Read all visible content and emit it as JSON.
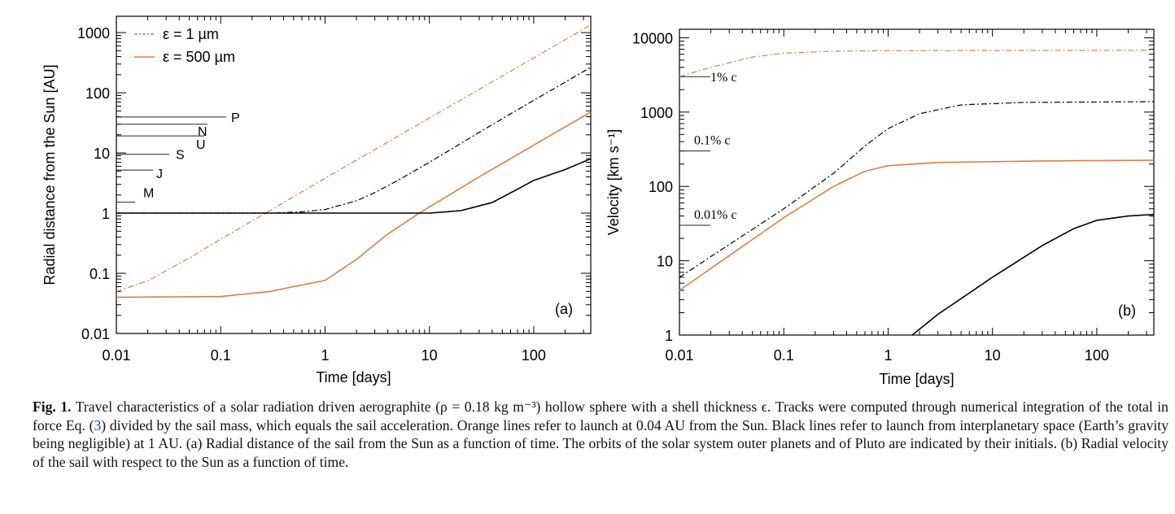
{
  "colors": {
    "orange": "#d9804a",
    "black": "#000000"
  },
  "chart_data": [
    {
      "type": "line",
      "panel_label": "(a)",
      "xlabel": "Time [days]",
      "ylabel": "Radial distance from the Sun [AU]",
      "xscale": "log",
      "yscale": "log",
      "xlim": [
        0.01,
        352
      ],
      "ylim": [
        0.01,
        1870
      ],
      "xticks": [
        "0.01",
        "0.1",
        "1",
        "10",
        "100"
      ],
      "yticks": [
        "0.01",
        "0.1",
        "1",
        "10",
        "100",
        "1000"
      ],
      "legend": {
        "placement": "top-left",
        "entries": [
          {
            "label": "ε =     1 µm",
            "style": "dashdot"
          },
          {
            "label": "ε = 500 µm",
            "style": "solid"
          }
        ]
      },
      "markers": [
        {
          "label": "P",
          "y": 39.5
        },
        {
          "label": "N",
          "y": 30
        },
        {
          "label": "U",
          "y": 19.2
        },
        {
          "label": "S",
          "y": 9.5
        },
        {
          "label": "J",
          "y": 5.2
        },
        {
          "label": "M",
          "y": 1.52
        }
      ],
      "series": [
        {
          "color": "orange",
          "style": "dashdot",
          "x": [
            0.01,
            0.02,
            0.05,
            0.1,
            0.27,
            1,
            10,
            100,
            352
          ],
          "y": [
            0.05,
            0.075,
            0.18,
            0.37,
            1,
            3.8,
            38,
            380,
            1350
          ]
        },
        {
          "color": "black",
          "style": "dashdot",
          "x": [
            0.01,
            0.3,
            0.6,
            1,
            2,
            3,
            5,
            10,
            30,
            100,
            352
          ],
          "y": [
            1,
            1,
            1.05,
            1.15,
            1.6,
            2.2,
            3.5,
            7,
            22,
            75,
            265
          ]
        },
        {
          "color": "orange",
          "style": "solid",
          "x": [
            0.01,
            0.1,
            0.3,
            0.5,
            1,
            2,
            4,
            8,
            30,
            100,
            352
          ],
          "y": [
            0.04,
            0.041,
            0.05,
            0.06,
            0.076,
            0.17,
            0.45,
            1,
            4,
            13.5,
            48
          ]
        },
        {
          "color": "black",
          "style": "solid",
          "x": [
            0.01,
            10,
            20,
            40,
            70,
            100,
            200,
            352
          ],
          "y": [
            1,
            1.0,
            1.1,
            1.5,
            2.5,
            3.5,
            5.3,
            8
          ]
        }
      ]
    },
    {
      "type": "line",
      "panel_label": "(b)",
      "xlabel": "Time [days]",
      "ylabel": "Velocity [km s⁻¹]",
      "xscale": "log",
      "yscale": "log",
      "xlim": [
        0.01,
        352
      ],
      "ylim": [
        1,
        13000
      ],
      "xticks": [
        "0.01",
        "0.1",
        "1",
        "10",
        "100"
      ],
      "yticks": [
        "1",
        "10",
        "100",
        "1000",
        "10000"
      ],
      "markers": [
        {
          "label": "1% c",
          "y": 3000
        },
        {
          "label": "0.1% c",
          "y": 300
        },
        {
          "label": "0.01% c",
          "y": 30
        }
      ],
      "series": [
        {
          "color": "orange",
          "style": "dashdot",
          "x": [
            0.01,
            0.02,
            0.05,
            0.1,
            0.3,
            1,
            352
          ],
          "y": [
            3000,
            4000,
            5500,
            6200,
            6600,
            6700,
            6800
          ]
        },
        {
          "color": "black",
          "style": "dashdot",
          "x": [
            0.01,
            0.1,
            0.3,
            0.6,
            1,
            2,
            5,
            20,
            352
          ],
          "y": [
            6,
            50,
            150,
            350,
            600,
            950,
            1250,
            1350,
            1380
          ]
        },
        {
          "color": "orange",
          "style": "solid",
          "x": [
            0.01,
            0.1,
            0.3,
            0.6,
            1,
            3,
            30,
            352
          ],
          "y": [
            4,
            38,
            100,
            160,
            190,
            210,
            220,
            225
          ]
        },
        {
          "color": "black",
          "style": "solid",
          "x": [
            1.7,
            3,
            10,
            30,
            60,
            100,
            200,
            352
          ],
          "y": [
            1,
            1.9,
            6,
            16,
            27,
            35,
            40,
            42
          ]
        }
      ]
    }
  ],
  "caption": {
    "label": "Fig. 1.",
    "text1": " Travel characteristics of a solar radiation driven aerographite (ρ = 0.18 kg m⁻³) hollow sphere with a shell thickness ϵ. Tracks were computed through numerical integration of the total in force Eq. (",
    "ref": "3",
    "text2": ") divided by the sail mass, which equals the sail acceleration. Orange lines refer to launch at 0.04 AU from the Sun. Black lines refer to launch from interplanetary space (Earth’s gravity being negligible) at 1 AU. (a) Radial distance of the sail from the Sun as a function of time. The orbits of the solar system outer planets and of Pluto are indicated by their initials. (b) Radial velocity of the sail with respect to the Sun as a function of time."
  }
}
